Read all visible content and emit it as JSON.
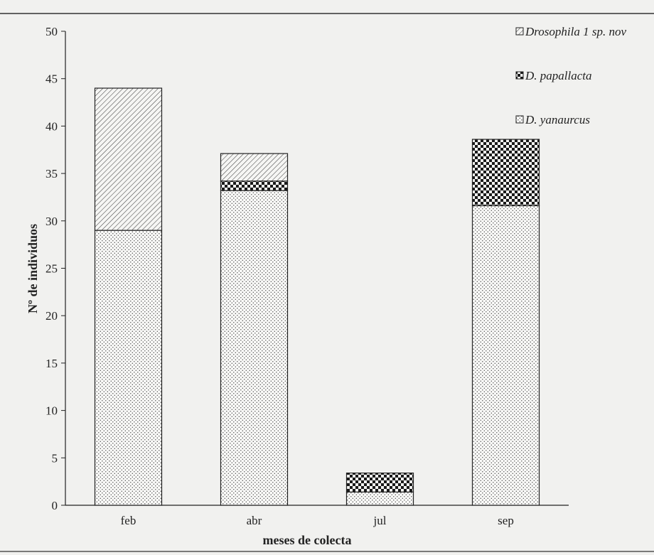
{
  "chart_data": {
    "type": "bar",
    "stacked": true,
    "categories": [
      "feb",
      "abr",
      "jul",
      "sep"
    ],
    "series": [
      {
        "name": "D. yanaurcus",
        "values": [
          29,
          33.2,
          1.4,
          31.6
        ],
        "pattern": "dots"
      },
      {
        "name": "D. papallacta",
        "values": [
          0,
          1,
          2,
          7
        ],
        "pattern": "checker"
      },
      {
        "name": "Drosophila 1 sp. nov",
        "values": [
          15,
          2.9,
          0,
          0
        ],
        "pattern": "diagonal"
      }
    ],
    "legend_order": [
      "Drosophila 1 sp. nov",
      "D. papallacta",
      "D. yanaurcus"
    ],
    "xlabel": "meses de colecta",
    "ylabel": "Nº de individuos",
    "ylim": [
      0,
      50
    ],
    "yticks": [
      0,
      5,
      10,
      15,
      20,
      25,
      30,
      35,
      40,
      45,
      50
    ],
    "grid": false,
    "legend_position": "top-right",
    "colors": {
      "background": "#f1f1ef",
      "ink": "#222222"
    }
  }
}
